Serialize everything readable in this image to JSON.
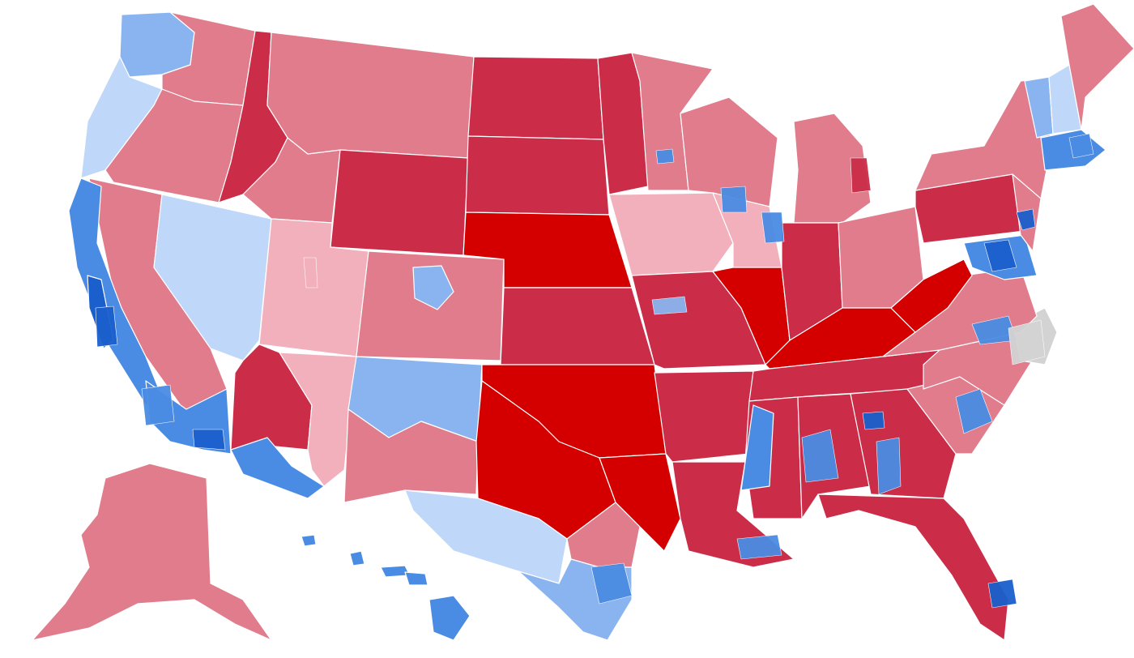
{
  "map": {
    "legend_colors": {
      "safe_r": "#d40000",
      "likely_r": "#cb2d48",
      "lean_r": "#e07c8c",
      "tilt_r": "#f2b0bd",
      "tilt_d": "#bfd7f9",
      "lean_d": "#8ab4f0",
      "likely_d": "#4a8ce3",
      "safe_d": "#1a5fcc",
      "no_data": "#d3d3d3"
    },
    "regions": [
      {
        "id": "wa-west",
        "rating": "lean_d"
      },
      {
        "id": "wa-east",
        "rating": "lean_r"
      },
      {
        "id": "or-west",
        "rating": "tilt_d"
      },
      {
        "id": "or-east",
        "rating": "lean_r"
      },
      {
        "id": "ca-north",
        "rating": "lean_r"
      },
      {
        "id": "ca-coast",
        "rating": "likely_d"
      },
      {
        "id": "ca-bay",
        "rating": "safe_d"
      },
      {
        "id": "ca-central",
        "rating": "lean_r"
      },
      {
        "id": "ca-south",
        "rating": "likely_d"
      },
      {
        "id": "nv",
        "rating": "tilt_d"
      },
      {
        "id": "id",
        "rating": "lean_r"
      },
      {
        "id": "id-panhandle",
        "rating": "likely_r"
      },
      {
        "id": "mt",
        "rating": "lean_r"
      },
      {
        "id": "wy",
        "rating": "likely_r"
      },
      {
        "id": "ut",
        "rating": "tilt_r"
      },
      {
        "id": "az-north",
        "rating": "likely_r"
      },
      {
        "id": "az-east",
        "rating": "tilt_r"
      },
      {
        "id": "az-south",
        "rating": "likely_d"
      },
      {
        "id": "co",
        "rating": "lean_r"
      },
      {
        "id": "co-denver",
        "rating": "lean_d"
      },
      {
        "id": "nm-north",
        "rating": "lean_d"
      },
      {
        "id": "nm-south",
        "rating": "lean_r"
      },
      {
        "id": "nd",
        "rating": "likely_r"
      },
      {
        "id": "sd",
        "rating": "likely_r"
      },
      {
        "id": "ne",
        "rating": "safe_r"
      },
      {
        "id": "ks",
        "rating": "likely_r"
      },
      {
        "id": "ok",
        "rating": "safe_r"
      },
      {
        "id": "tx-panhandle",
        "rating": "safe_r"
      },
      {
        "id": "tx-west",
        "rating": "tilt_d"
      },
      {
        "id": "tx-central",
        "rating": "lean_r"
      },
      {
        "id": "tx-south",
        "rating": "lean_d"
      },
      {
        "id": "tx-east",
        "rating": "safe_r"
      },
      {
        "id": "mn",
        "rating": "lean_r"
      },
      {
        "id": "mn-west",
        "rating": "likely_r"
      },
      {
        "id": "ia",
        "rating": "tilt_r"
      },
      {
        "id": "mo",
        "rating": "likely_r"
      },
      {
        "id": "ar",
        "rating": "likely_r"
      },
      {
        "id": "la",
        "rating": "likely_r"
      },
      {
        "id": "wi",
        "rating": "lean_r"
      },
      {
        "id": "il-north",
        "rating": "tilt_r"
      },
      {
        "id": "il-south",
        "rating": "safe_r"
      },
      {
        "id": "mi",
        "rating": "lean_r"
      },
      {
        "id": "in",
        "rating": "likely_r"
      },
      {
        "id": "oh",
        "rating": "lean_r"
      },
      {
        "id": "ky",
        "rating": "safe_r"
      },
      {
        "id": "tn",
        "rating": "likely_r"
      },
      {
        "id": "ms",
        "rating": "likely_r"
      },
      {
        "id": "ms-delta",
        "rating": "likely_d"
      },
      {
        "id": "al",
        "rating": "likely_r"
      },
      {
        "id": "ga",
        "rating": "likely_r"
      },
      {
        "id": "fl",
        "rating": "likely_r"
      },
      {
        "id": "sc",
        "rating": "lean_r"
      },
      {
        "id": "nc",
        "rating": "lean_r"
      },
      {
        "id": "nc-east",
        "rating": "no_data"
      },
      {
        "id": "va",
        "rating": "lean_r"
      },
      {
        "id": "wv",
        "rating": "safe_r"
      },
      {
        "id": "pa",
        "rating": "likely_r"
      },
      {
        "id": "ny",
        "rating": "lean_r"
      },
      {
        "id": "vt",
        "rating": "lean_d"
      },
      {
        "id": "nh",
        "rating": "tilt_d"
      },
      {
        "id": "me",
        "rating": "lean_r"
      },
      {
        "id": "ma",
        "rating": "likely_d"
      },
      {
        "id": "nj",
        "rating": "lean_r"
      },
      {
        "id": "md",
        "rating": "likely_d"
      },
      {
        "id": "ak",
        "rating": "lean_r"
      },
      {
        "id": "hi",
        "rating": "likely_d"
      }
    ]
  }
}
